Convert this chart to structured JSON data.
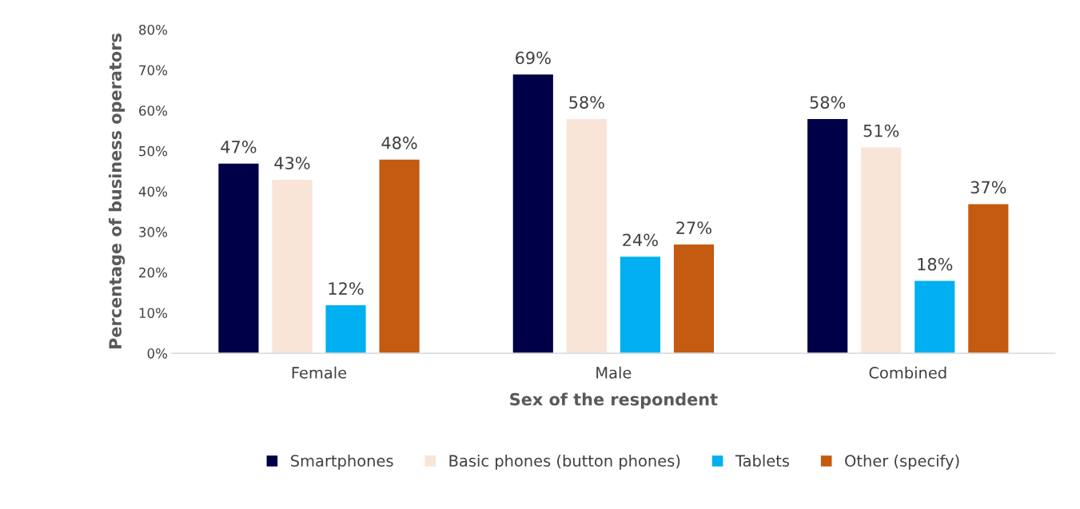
{
  "chart_data": {
    "type": "bar",
    "xlabel": "Sex of the respondent",
    "ylabel": "Percentage of business operators",
    "categories": [
      "Female",
      "Male",
      "Combined"
    ],
    "series": [
      {
        "name": "Smartphones",
        "color": "#000048",
        "values": [
          47,
          69,
          58
        ],
        "value_labels": [
          "47%",
          "69%",
          "58%"
        ]
      },
      {
        "name": "Basic phones (button phones)",
        "color": "#f9e4d8",
        "values": [
          43,
          58,
          51
        ],
        "value_labels": [
          "43%",
          "58%",
          "51%"
        ]
      },
      {
        "name": "Tablets",
        "color": "#00b0f0",
        "values": [
          12,
          24,
          18
        ],
        "value_labels": [
          "12%",
          "24%",
          "18%"
        ]
      },
      {
        "name": "Other (specify)",
        "color": "#c55a11",
        "values": [
          48,
          27,
          37
        ],
        "value_labels": [
          "48%",
          "27%",
          "37%"
        ]
      }
    ],
    "ylim": [
      0,
      80
    ],
    "yticks": [
      {
        "value": 0,
        "label": "0%"
      },
      {
        "value": 10,
        "label": "10%"
      },
      {
        "value": 20,
        "label": "20%"
      },
      {
        "value": 30,
        "label": "30%"
      },
      {
        "value": 40,
        "label": "40%"
      },
      {
        "value": 50,
        "label": "50%"
      },
      {
        "value": 60,
        "label": "60%"
      },
      {
        "value": 70,
        "label": "70%"
      },
      {
        "value": 80,
        "label": "80%"
      }
    ],
    "grid": false,
    "legend": "bottom"
  }
}
